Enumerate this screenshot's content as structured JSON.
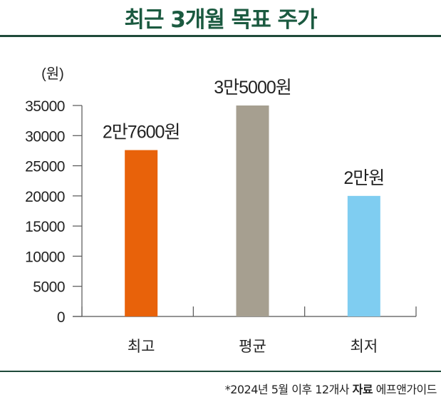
{
  "chart_data": {
    "type": "bar",
    "title": "최근 3개월 목표 주가",
    "ylabel": "(원)",
    "xlabel": "",
    "ylim": [
      0,
      35000
    ],
    "yticks": [
      0,
      5000,
      10000,
      15000,
      20000,
      25000,
      30000,
      35000
    ],
    "categories": [
      "최고",
      "평균",
      "최저"
    ],
    "values": [
      27600,
      35000,
      20000
    ],
    "data_labels": [
      "2만7600원",
      "3만5000원",
      "2만원"
    ],
    "colors": [
      "#e8620a",
      "#a69f90",
      "#7fcdf1"
    ],
    "grid": false,
    "legend": "none"
  },
  "footnote": {
    "text": "*2024년 5월 이후 12개사",
    "source_label": "자료",
    "source": "에프앤가이드"
  },
  "colors": {
    "title": "#1b5a40",
    "rule": "#1f4a3a",
    "axis": "#555555"
  }
}
